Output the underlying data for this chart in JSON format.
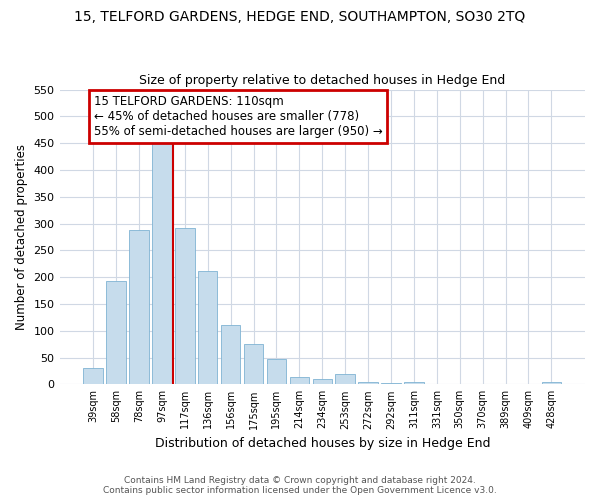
{
  "title": "15, TELFORD GARDENS, HEDGE END, SOUTHAMPTON, SO30 2TQ",
  "subtitle": "Size of property relative to detached houses in Hedge End",
  "xlabel": "Distribution of detached houses by size in Hedge End",
  "ylabel": "Number of detached properties",
  "bar_color": "#c6dcec",
  "bar_edge_color": "#7fb3d3",
  "background_color": "#ffffff",
  "grid_color": "#d0d8e4",
  "categories": [
    "39sqm",
    "58sqm",
    "78sqm",
    "97sqm",
    "117sqm",
    "136sqm",
    "156sqm",
    "175sqm",
    "195sqm",
    "214sqm",
    "234sqm",
    "253sqm",
    "272sqm",
    "292sqm",
    "311sqm",
    "331sqm",
    "350sqm",
    "370sqm",
    "389sqm",
    "409sqm",
    "428sqm"
  ],
  "values": [
    30,
    192,
    287,
    460,
    292,
    212,
    110,
    75,
    47,
    13,
    9,
    20,
    5,
    3,
    5,
    1,
    1,
    0,
    0,
    0,
    4
  ],
  "ylim": [
    0,
    550
  ],
  "yticks": [
    0,
    50,
    100,
    150,
    200,
    250,
    300,
    350,
    400,
    450,
    500,
    550
  ],
  "annotation_title": "15 TELFORD GARDENS: 110sqm",
  "annotation_line1": "← 45% of detached houses are smaller (778)",
  "annotation_line2": "55% of semi-detached houses are larger (950) →",
  "annotation_box_color": "#ffffff",
  "annotation_border_color": "#cc0000",
  "line_color": "#cc0000",
  "line_x_index": 3.5,
  "footer1": "Contains HM Land Registry data © Crown copyright and database right 2024.",
  "footer2": "Contains public sector information licensed under the Open Government Licence v3.0."
}
